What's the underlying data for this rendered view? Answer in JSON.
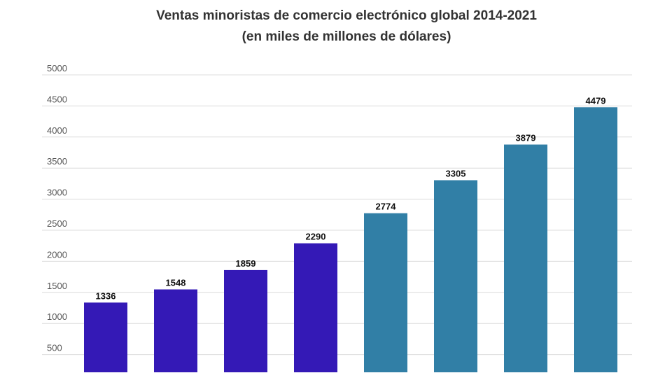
{
  "chart_data": {
    "type": "bar",
    "title": "Ventas minoristas de comercio electrónico global 2014-2021",
    "subtitle": "(en miles de millones de dólares)",
    "values": [
      1336,
      1548,
      1859,
      2290,
      2774,
      3305,
      3879,
      4479
    ],
    "bar_colors": [
      "#3419b6",
      "#3419b6",
      "#3419b6",
      "#3419b6",
      "#317fa6",
      "#317fa6",
      "#317fa6",
      "#317fa6"
    ],
    "y_ticks": [
      "500",
      "1000",
      "1500",
      "2000",
      "2500",
      "3000",
      "3500",
      "4000",
      "4500",
      "5000"
    ],
    "ylim": [
      0,
      5000
    ],
    "grid": true,
    "data_labels": true
  }
}
